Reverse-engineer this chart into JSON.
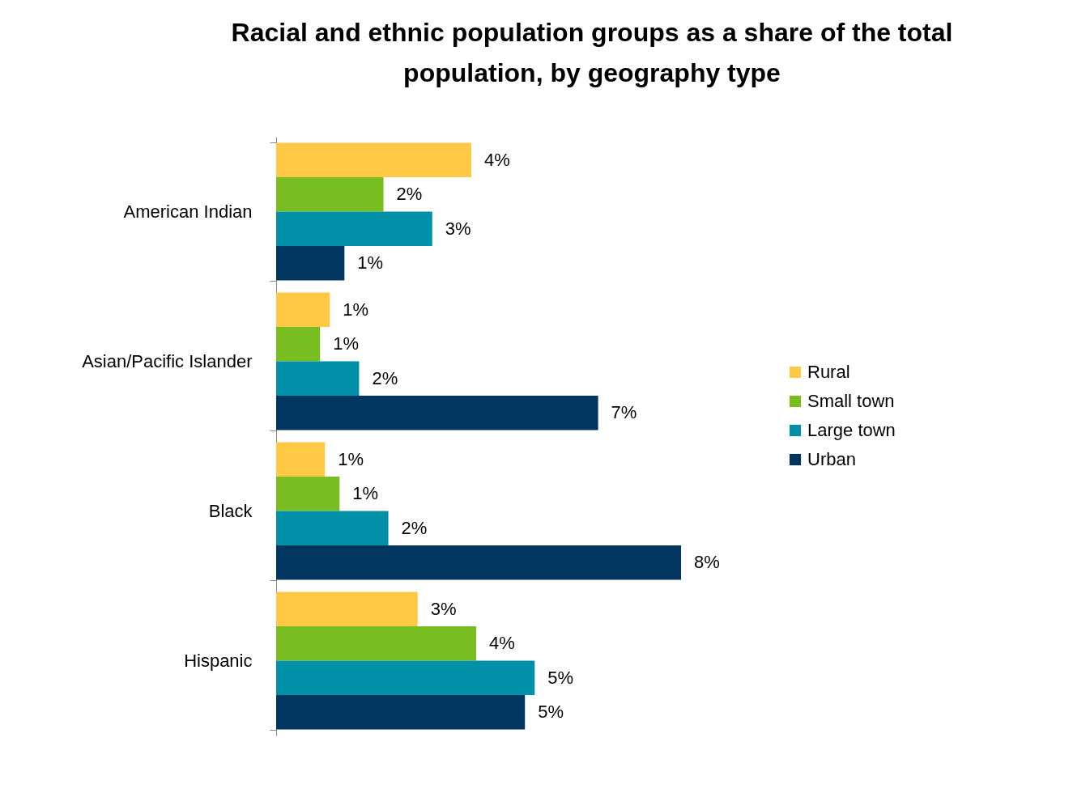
{
  "chart_data": {
    "type": "bar",
    "orientation": "horizontal",
    "title": "Racial and ethnic population groups as a share of the total population, by geography type",
    "categories": [
      "American Indian",
      "Asian/Pacific Islander",
      "Black",
      "Hispanic"
    ],
    "series": [
      {
        "name": "Rural",
        "color": "#ffc845",
        "values": [
          4.0,
          1.1,
          1.0,
          2.9
        ],
        "value_labels": [
          "4%",
          "1%",
          "1%",
          "3%"
        ]
      },
      {
        "name": "Small town",
        "color": "#78be20",
        "values": [
          2.2,
          0.9,
          1.3,
          4.1
        ],
        "value_labels": [
          "2%",
          "1%",
          "1%",
          "4%"
        ]
      },
      {
        "name": "Large town",
        "color": "#0090a8",
        "values": [
          3.2,
          1.7,
          2.3,
          5.3
        ],
        "value_labels": [
          "3%",
          "2%",
          "2%",
          "5%"
        ]
      },
      {
        "name": "Urban",
        "color": "#003660",
        "values": [
          1.4,
          6.6,
          8.3,
          5.1
        ],
        "value_labels": [
          "1%",
          "7%",
          "8%",
          "5%"
        ]
      }
    ],
    "legend": "right"
  }
}
